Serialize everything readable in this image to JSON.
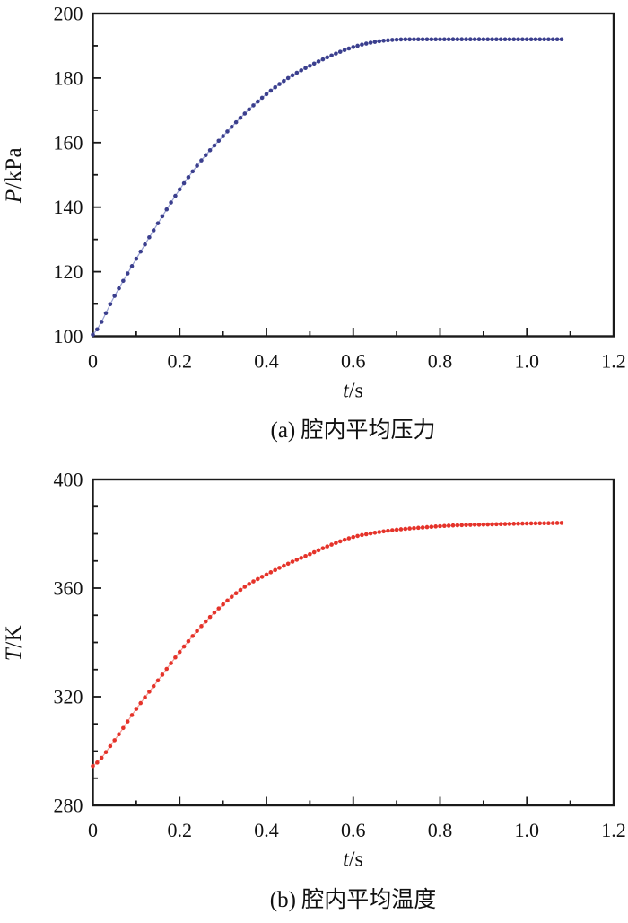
{
  "page": {
    "background": "#ffffff",
    "axis_color": "#1a1a1a",
    "text_color": "#111111"
  },
  "chart_data": [
    {
      "type": "scatter",
      "panel": "a",
      "caption": "(a) 腔内平均压力",
      "series_name": "腔内平均压力 (cavity mean pressure)",
      "xlabel_var": "t",
      "xlabel_unit": "/s",
      "ylabel_var": "P",
      "ylabel_unit": "/kPa",
      "xlim": [
        0,
        1.2
      ],
      "ylim": [
        100,
        200
      ],
      "x_major_ticks": [
        0,
        0.2,
        0.4,
        0.6,
        0.8,
        1.0,
        1.2
      ],
      "x_tick_labels": [
        "0",
        "0.2",
        "0.4",
        "0.6",
        "0.8",
        "1.0",
        "1.2"
      ],
      "x_minor_step": 0.1,
      "y_major_ticks": [
        100,
        120,
        140,
        160,
        180,
        200
      ],
      "y_tick_labels": [
        "100",
        "120",
        "140",
        "160",
        "180",
        "200"
      ],
      "y_minor_step": 10,
      "grid": false,
      "legend": false,
      "marker_color": "#3b3f8e",
      "line_color": "#9aa2d2",
      "marker_radius": 2.3,
      "t_step": 0.01,
      "t_end": 1.08,
      "anchors": [
        [
          0,
          100.5
        ],
        [
          0.05,
          112.5
        ],
        [
          0.1,
          124
        ],
        [
          0.15,
          135
        ],
        [
          0.2,
          145.5
        ],
        [
          0.25,
          154.5
        ],
        [
          0.3,
          162
        ],
        [
          0.35,
          169
        ],
        [
          0.4,
          175
        ],
        [
          0.45,
          180
        ],
        [
          0.5,
          183.8
        ],
        [
          0.55,
          187
        ],
        [
          0.6,
          189.6
        ],
        [
          0.65,
          191.2
        ],
        [
          0.7,
          191.9
        ],
        [
          0.75,
          192
        ],
        [
          1.08,
          192
        ]
      ]
    },
    {
      "type": "scatter",
      "panel": "b",
      "caption": "(b) 腔内平均温度",
      "series_name": "腔内平均温度 (cavity mean temperature)",
      "xlabel_var": "t",
      "xlabel_unit": "/s",
      "ylabel_var": "T",
      "ylabel_unit": "/K",
      "xlim": [
        0,
        1.2
      ],
      "ylim": [
        280,
        400
      ],
      "x_major_ticks": [
        0,
        0.2,
        0.4,
        0.6,
        0.8,
        1.0,
        1.2
      ],
      "x_tick_labels": [
        "0",
        "0.2",
        "0.4",
        "0.6",
        "0.8",
        "1.0",
        "1.2"
      ],
      "x_minor_step": 0.1,
      "y_major_ticks": [
        280,
        320,
        360,
        400
      ],
      "y_tick_labels": [
        "280",
        "320",
        "360",
        "400"
      ],
      "y_minor_step": 10,
      "grid": false,
      "legend": false,
      "marker_color": "#e5332a",
      "line_color": "#f29b96",
      "marker_radius": 2.3,
      "t_step": 0.01,
      "t_end": 1.08,
      "anchors": [
        [
          0,
          294.5
        ],
        [
          0.05,
          304
        ],
        [
          0.1,
          315.5
        ],
        [
          0.15,
          326
        ],
        [
          0.2,
          336.5
        ],
        [
          0.25,
          346
        ],
        [
          0.3,
          354
        ],
        [
          0.35,
          360.5
        ],
        [
          0.4,
          365
        ],
        [
          0.45,
          369
        ],
        [
          0.5,
          372.5
        ],
        [
          0.55,
          376
        ],
        [
          0.6,
          378.8
        ],
        [
          0.65,
          380.4
        ],
        [
          0.7,
          381.5
        ],
        [
          0.75,
          382.2
        ],
        [
          0.8,
          382.8
        ],
        [
          0.85,
          383.2
        ],
        [
          0.9,
          383.4
        ],
        [
          0.95,
          383.6
        ],
        [
          1.0,
          383.8
        ],
        [
          1.05,
          383.9
        ],
        [
          1.08,
          384
        ]
      ]
    }
  ]
}
